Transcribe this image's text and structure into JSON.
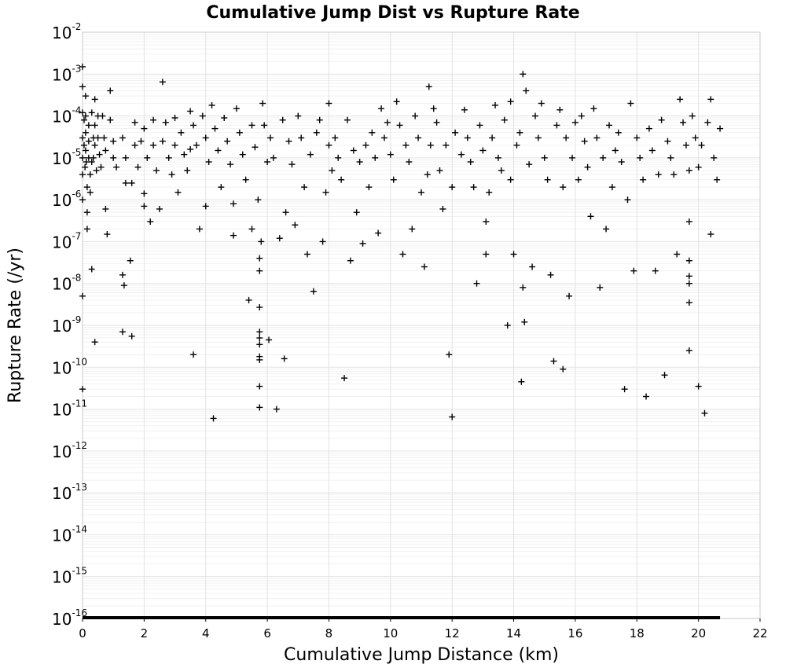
{
  "chart_data": {
    "type": "scatter",
    "title": "Cumulative Jump Dist vs Rupture Rate",
    "xlabel": "Cumulative Jump Distance (km)",
    "ylabel": "Rupture Rate (/yr)",
    "xlim": [
      0,
      22
    ],
    "ylim": [
      1e-16,
      0.01
    ],
    "y_scale": "log",
    "grid": true,
    "marker": "plus",
    "marker_color": "#000000",
    "x_ticks": [
      "0",
      "2",
      "4",
      "6",
      "8",
      "10",
      "12",
      "14",
      "16",
      "18",
      "20",
      "22"
    ],
    "y_ticks": [
      {
        "base": "10",
        "exp": "-2"
      },
      {
        "base": "10",
        "exp": "-3"
      },
      {
        "base": "10",
        "exp": "-4"
      },
      {
        "base": "10",
        "exp": "-5"
      },
      {
        "base": "10",
        "exp": "-6"
      },
      {
        "base": "10",
        "exp": "-7"
      },
      {
        "base": "10",
        "exp": "-8"
      },
      {
        "base": "10",
        "exp": "-9"
      },
      {
        "base": "10",
        "exp": "-10"
      },
      {
        "base": "10",
        "exp": "-11"
      },
      {
        "base": "10",
        "exp": "-12"
      },
      {
        "base": "10",
        "exp": "-13"
      },
      {
        "base": "10",
        "exp": "-14"
      },
      {
        "base": "10",
        "exp": "-15"
      },
      {
        "base": "10",
        "exp": "-16"
      }
    ],
    "points": [
      [
        0.0,
        0.0015
      ],
      [
        0.0,
        0.0005
      ],
      [
        0.0,
        0.00012
      ],
      [
        0.0,
        3e-05
      ],
      [
        0.0,
        1e-05
      ],
      [
        0.0,
        4e-06
      ],
      [
        0.0,
        1e-06
      ],
      [
        0.0,
        5e-09
      ],
      [
        0.0,
        3e-11
      ],
      [
        0.05,
        8e-05
      ],
      [
        0.05,
        2e-05
      ],
      [
        0.08,
        6e-06
      ],
      [
        0.1,
        0.0003
      ],
      [
        0.1,
        0.0001
      ],
      [
        0.1,
        4e-05
      ],
      [
        0.1,
        1.5e-05
      ],
      [
        0.12,
        8e-06
      ],
      [
        0.15,
        2e-06
      ],
      [
        0.15,
        5e-07
      ],
      [
        0.15,
        2e-07
      ],
      [
        0.2,
        6e-05
      ],
      [
        0.2,
        2.5e-05
      ],
      [
        0.2,
        1e-05
      ],
      [
        0.25,
        4e-06
      ],
      [
        0.25,
        1.5e-06
      ],
      [
        0.3,
        0.00012
      ],
      [
        0.3,
        8e-06
      ],
      [
        0.3,
        2.2e-08
      ],
      [
        0.35,
        3e-05
      ],
      [
        0.35,
        1e-05
      ],
      [
        0.4,
        0.00025
      ],
      [
        0.4,
        6e-05
      ],
      [
        0.4,
        2e-05
      ],
      [
        0.4,
        4e-10
      ],
      [
        0.45,
        5e-06
      ],
      [
        0.5,
        0.0001
      ],
      [
        0.5,
        3e-05
      ],
      [
        0.55,
        1.2e-05
      ],
      [
        0.6,
        6e-06
      ],
      [
        0.65,
        0.0001
      ],
      [
        0.7,
        3e-05
      ],
      [
        0.75,
        1.5e-05
      ],
      [
        0.75,
        6e-07
      ],
      [
        0.8,
        1.5e-07
      ],
      [
        0.9,
        0.0004
      ],
      [
        0.9,
        8e-05
      ],
      [
        1.0,
        1e-05
      ],
      [
        1.0,
        2.5e-05
      ],
      [
        1.1,
        6e-06
      ],
      [
        1.3,
        3e-05
      ],
      [
        1.3,
        1.6e-08
      ],
      [
        1.3,
        7e-10
      ],
      [
        1.35,
        9e-09
      ],
      [
        1.4,
        1e-05
      ],
      [
        1.4,
        2.5e-06
      ],
      [
        1.55,
        3.5e-08
      ],
      [
        1.6,
        5.5e-10
      ],
      [
        1.6,
        2.5e-06
      ],
      [
        1.7,
        7e-05
      ],
      [
        1.7,
        2e-05
      ],
      [
        1.8,
        6e-06
      ],
      [
        1.9,
        2.5e-05
      ],
      [
        2.0,
        1.4e-06
      ],
      [
        2.0,
        7e-07
      ],
      [
        2.0,
        5e-05
      ],
      [
        2.1,
        1e-05
      ],
      [
        2.2,
        3e-07
      ],
      [
        2.3,
        8e-05
      ],
      [
        2.3,
        2e-05
      ],
      [
        2.4,
        5e-06
      ],
      [
        2.5,
        6e-07
      ],
      [
        2.6,
        0.00065
      ],
      [
        2.6,
        2.5e-05
      ],
      [
        2.7,
        7e-05
      ],
      [
        2.8,
        1e-05
      ],
      [
        2.9,
        4e-06
      ],
      [
        3.0,
        9e-05
      ],
      [
        3.0,
        2e-05
      ],
      [
        3.1,
        1.5e-06
      ],
      [
        3.2,
        4e-05
      ],
      [
        3.3,
        1.2e-05
      ],
      [
        3.4,
        5e-06
      ],
      [
        3.5,
        0.00013
      ],
      [
        3.5,
        1.6e-05
      ],
      [
        3.6,
        6e-05
      ],
      [
        3.6,
        2e-10
      ],
      [
        3.7,
        2e-05
      ],
      [
        3.8,
        2e-07
      ],
      [
        3.9,
        0.0001
      ],
      [
        4.0,
        3e-05
      ],
      [
        4.0,
        7e-07
      ],
      [
        4.1,
        8e-06
      ],
      [
        4.2,
        0.00018
      ],
      [
        4.25,
        6e-12
      ],
      [
        4.3,
        5e-05
      ],
      [
        4.4,
        1.5e-05
      ],
      [
        4.5,
        2e-06
      ],
      [
        4.6,
        9e-05
      ],
      [
        4.7,
        2.5e-05
      ],
      [
        4.8,
        7e-06
      ],
      [
        4.9,
        8e-07
      ],
      [
        4.9,
        1.4e-07
      ],
      [
        5.0,
        0.00015
      ],
      [
        5.1,
        4e-05
      ],
      [
        5.2,
        1.2e-05
      ],
      [
        5.3,
        3e-06
      ],
      [
        5.4,
        4e-09
      ],
      [
        5.5,
        2e-07
      ],
      [
        5.5,
        6e-05
      ],
      [
        5.6,
        1.8e-05
      ],
      [
        5.7,
        1e-06
      ],
      [
        5.75,
        4e-08
      ],
      [
        5.75,
        2e-08
      ],
      [
        5.75,
        2.7e-09
      ],
      [
        5.75,
        7e-10
      ],
      [
        5.75,
        5e-10
      ],
      [
        5.75,
        3.5e-10
      ],
      [
        5.75,
        1.8e-10
      ],
      [
        5.75,
        1.5e-10
      ],
      [
        5.75,
        3.5e-11
      ],
      [
        5.75,
        1.1e-11
      ],
      [
        5.8,
        1e-07
      ],
      [
        5.85,
        0.0002
      ],
      [
        5.9,
        6e-05
      ],
      [
        6.0,
        8e-06
      ],
      [
        6.05,
        4.5e-10
      ],
      [
        6.1,
        3e-05
      ],
      [
        6.2,
        1e-05
      ],
      [
        6.3,
        1e-11
      ],
      [
        6.4,
        1.2e-07
      ],
      [
        6.5,
        8e-05
      ],
      [
        6.55,
        1.6e-10
      ],
      [
        6.6,
        5e-07
      ],
      [
        6.7,
        2.5e-05
      ],
      [
        6.8,
        7e-06
      ],
      [
        6.9,
        2.5e-07
      ],
      [
        7.0,
        0.0001
      ],
      [
        7.1,
        3e-05
      ],
      [
        7.2,
        2e-06
      ],
      [
        7.3,
        5e-08
      ],
      [
        7.4,
        1.2e-05
      ],
      [
        7.5,
        6.5e-09
      ],
      [
        7.6,
        4e-05
      ],
      [
        7.7,
        8e-05
      ],
      [
        7.8,
        1e-07
      ],
      [
        7.9,
        1.5e-06
      ],
      [
        8.0,
        0.0002
      ],
      [
        8.0,
        2e-05
      ],
      [
        8.1,
        5e-06
      ],
      [
        8.2,
        3e-05
      ],
      [
        8.3,
        1e-05
      ],
      [
        8.4,
        3e-06
      ],
      [
        8.5,
        5.5e-11
      ],
      [
        8.6,
        8e-05
      ],
      [
        8.7,
        3.5e-08
      ],
      [
        8.8,
        1.5e-05
      ],
      [
        8.9,
        5e-07
      ],
      [
        9.0,
        8e-06
      ],
      [
        9.1,
        9e-08
      ],
      [
        9.2,
        2e-05
      ],
      [
        9.3,
        2e-06
      ],
      [
        9.4,
        4e-05
      ],
      [
        9.5,
        1e-05
      ],
      [
        9.6,
        1.6e-07
      ],
      [
        9.7,
        0.00015
      ],
      [
        9.8,
        3e-05
      ],
      [
        9.9,
        7e-05
      ],
      [
        10.0,
        1.2e-05
      ],
      [
        10.1,
        3e-06
      ],
      [
        10.2,
        0.00022
      ],
      [
        10.3,
        6e-05
      ],
      [
        10.4,
        5e-08
      ],
      [
        10.5,
        2e-05
      ],
      [
        10.6,
        8e-06
      ],
      [
        10.7,
        2e-07
      ],
      [
        10.8,
        0.0001
      ],
      [
        10.9,
        3e-05
      ],
      [
        11.0,
        1.5e-06
      ],
      [
        11.1,
        2.5e-08
      ],
      [
        11.2,
        4e-06
      ],
      [
        11.25,
        0.0005
      ],
      [
        11.3,
        2e-05
      ],
      [
        11.4,
        0.00015
      ],
      [
        11.5,
        7e-05
      ],
      [
        11.6,
        5e-06
      ],
      [
        11.7,
        6e-07
      ],
      [
        11.8,
        2e-05
      ],
      [
        11.9,
        2e-10
      ],
      [
        12.0,
        6.5e-12
      ],
      [
        12.0,
        2e-06
      ],
      [
        12.1,
        4e-05
      ],
      [
        12.3,
        1.2e-05
      ],
      [
        12.4,
        0.00014
      ],
      [
        12.5,
        3e-05
      ],
      [
        12.6,
        8e-06
      ],
      [
        12.7,
        2e-06
      ],
      [
        12.8,
        1e-08
      ],
      [
        12.9,
        6e-05
      ],
      [
        13.0,
        1.5e-05
      ],
      [
        13.1,
        3e-07
      ],
      [
        13.1,
        5e-08
      ],
      [
        13.2,
        1.5e-06
      ],
      [
        13.3,
        3e-05
      ],
      [
        13.4,
        0.00018
      ],
      [
        13.5,
        1e-05
      ],
      [
        13.6,
        5e-06
      ],
      [
        13.7,
        8e-05
      ],
      [
        13.8,
        1e-09
      ],
      [
        13.9,
        0.00022
      ],
      [
        13.9,
        3e-06
      ],
      [
        14.0,
        5e-08
      ],
      [
        14.1,
        2e-05
      ],
      [
        14.2,
        4e-05
      ],
      [
        14.25,
        4.5e-11
      ],
      [
        14.3,
        8e-09
      ],
      [
        14.3,
        0.001
      ],
      [
        14.35,
        1.2e-09
      ],
      [
        14.4,
        0.0004
      ],
      [
        14.5,
        7e-06
      ],
      [
        14.6,
        2.5e-08
      ],
      [
        14.7,
        0.0001
      ],
      [
        14.8,
        3e-05
      ],
      [
        14.9,
        0.0002
      ],
      [
        15.0,
        1e-05
      ],
      [
        15.1,
        3e-06
      ],
      [
        15.2,
        1.6e-08
      ],
      [
        15.3,
        1.4e-10
      ],
      [
        15.4,
        6e-05
      ],
      [
        15.5,
        0.00014
      ],
      [
        15.6,
        9e-11
      ],
      [
        15.6,
        2e-06
      ],
      [
        15.7,
        3e-05
      ],
      [
        15.8,
        5e-09
      ],
      [
        15.9,
        1e-05
      ],
      [
        16.0,
        7e-05
      ],
      [
        16.1,
        3e-06
      ],
      [
        16.2,
        0.0001
      ],
      [
        16.3,
        2.5e-05
      ],
      [
        16.4,
        6e-06
      ],
      [
        16.5,
        4e-07
      ],
      [
        16.6,
        0.00015
      ],
      [
        16.7,
        3e-05
      ],
      [
        16.8,
        8e-09
      ],
      [
        16.9,
        1e-05
      ],
      [
        17.0,
        2e-07
      ],
      [
        17.1,
        6e-05
      ],
      [
        17.2,
        2e-06
      ],
      [
        17.3,
        1.5e-05
      ],
      [
        17.4,
        4e-05
      ],
      [
        17.5,
        8e-06
      ],
      [
        17.6,
        3e-11
      ],
      [
        17.7,
        1e-06
      ],
      [
        17.8,
        0.0002
      ],
      [
        17.9,
        2e-08
      ],
      [
        18.0,
        3e-05
      ],
      [
        18.1,
        1e-05
      ],
      [
        18.2,
        3e-06
      ],
      [
        18.3,
        2e-11
      ],
      [
        18.4,
        5e-05
      ],
      [
        18.5,
        1.5e-05
      ],
      [
        18.6,
        2e-08
      ],
      [
        18.7,
        4e-06
      ],
      [
        18.8,
        8e-05
      ],
      [
        18.9,
        6.5e-11
      ],
      [
        19.0,
        2.5e-05
      ],
      [
        19.1,
        1e-05
      ],
      [
        19.2,
        4e-06
      ],
      [
        19.3,
        5e-08
      ],
      [
        19.4,
        0.00025
      ],
      [
        19.5,
        7e-05
      ],
      [
        19.6,
        2e-05
      ],
      [
        19.7,
        5e-06
      ],
      [
        19.7,
        3.5e-08
      ],
      [
        19.7,
        1.5e-08
      ],
      [
        19.7,
        1e-08
      ],
      [
        19.7,
        3.5e-09
      ],
      [
        19.7,
        2.5e-10
      ],
      [
        19.7,
        3e-07
      ],
      [
        19.8,
        0.0001
      ],
      [
        19.9,
        3e-05
      ],
      [
        20.0,
        3.5e-11
      ],
      [
        20.0,
        6e-06
      ],
      [
        20.1,
        2e-05
      ],
      [
        20.2,
        8e-12
      ],
      [
        20.3,
        7e-05
      ],
      [
        20.4,
        0.00025
      ],
      [
        20.4,
        1.5e-07
      ],
      [
        20.5,
        1e-05
      ],
      [
        20.6,
        3e-06
      ],
      [
        20.7,
        5e-05
      ]
    ]
  }
}
